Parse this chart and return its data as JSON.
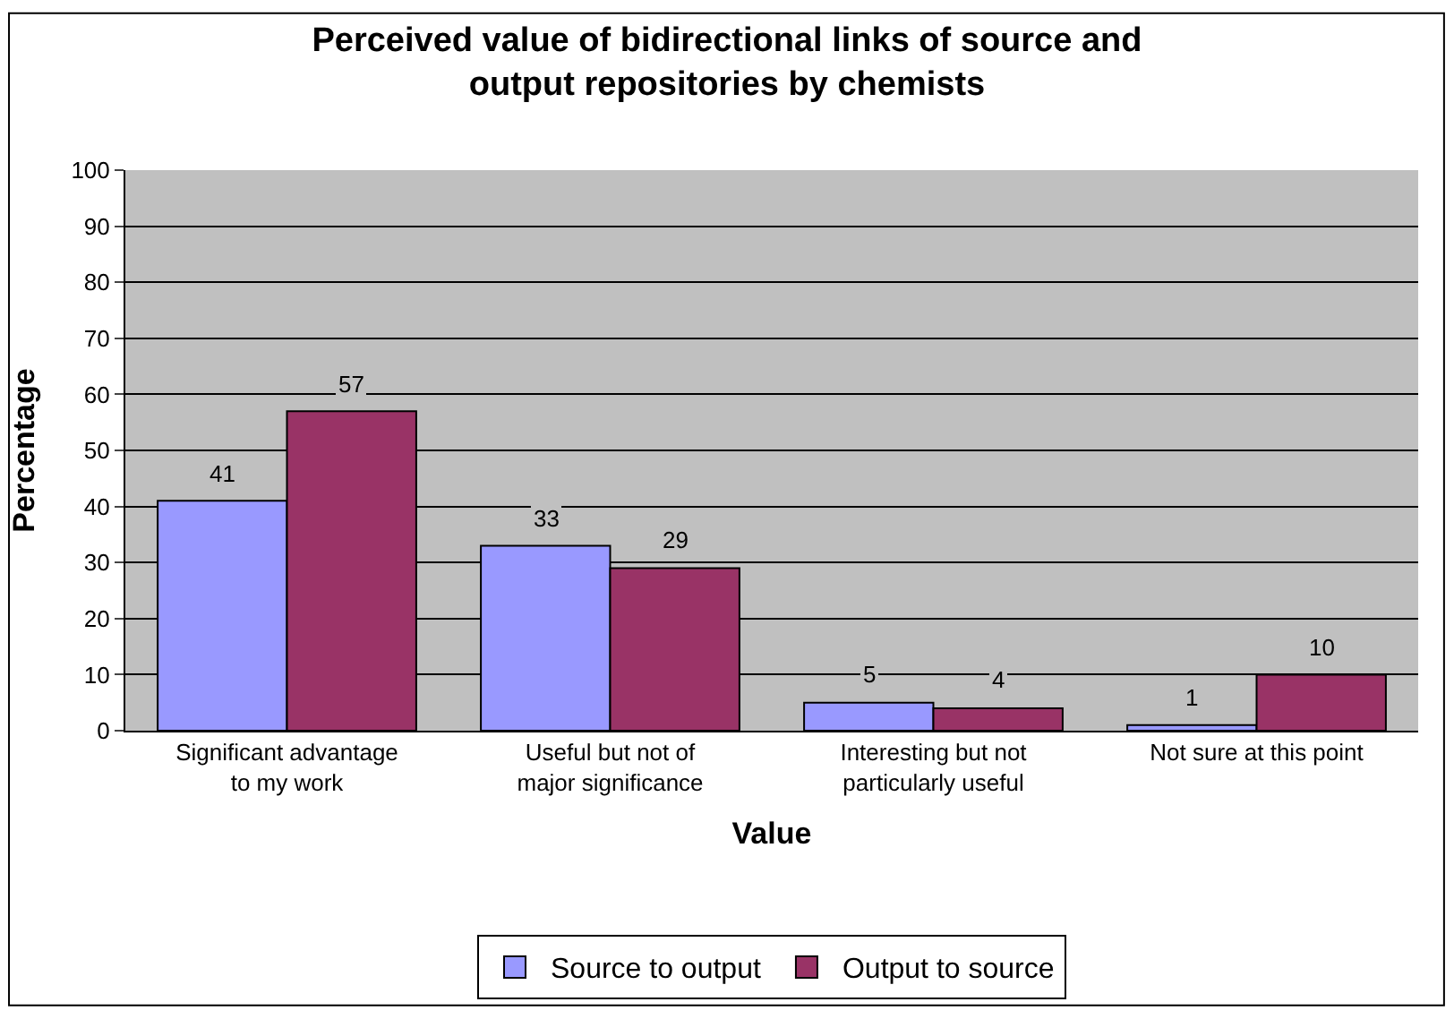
{
  "chart_data": {
    "type": "bar",
    "title": "Perceived value of bidirectional links of source and output repositories by chemists",
    "xlabel": "Value",
    "ylabel": "Percentage",
    "categories": [
      "Significant advantage to my work",
      "Useful but not of major significance",
      "Interesting but not particularly useful",
      "Not sure at this point"
    ],
    "series": [
      {
        "name": "Source to output",
        "color": "#9999ff",
        "values": [
          41,
          33,
          5,
          1
        ]
      },
      {
        "name": "Output to source",
        "color": "#993366",
        "values": [
          57,
          29,
          4,
          10
        ]
      }
    ],
    "ylim": [
      0,
      100
    ],
    "yticks": [
      0,
      10,
      20,
      30,
      40,
      50,
      60,
      70,
      80,
      90,
      100
    ],
    "grid": "y",
    "legend": "bottom",
    "data_labels": true
  }
}
